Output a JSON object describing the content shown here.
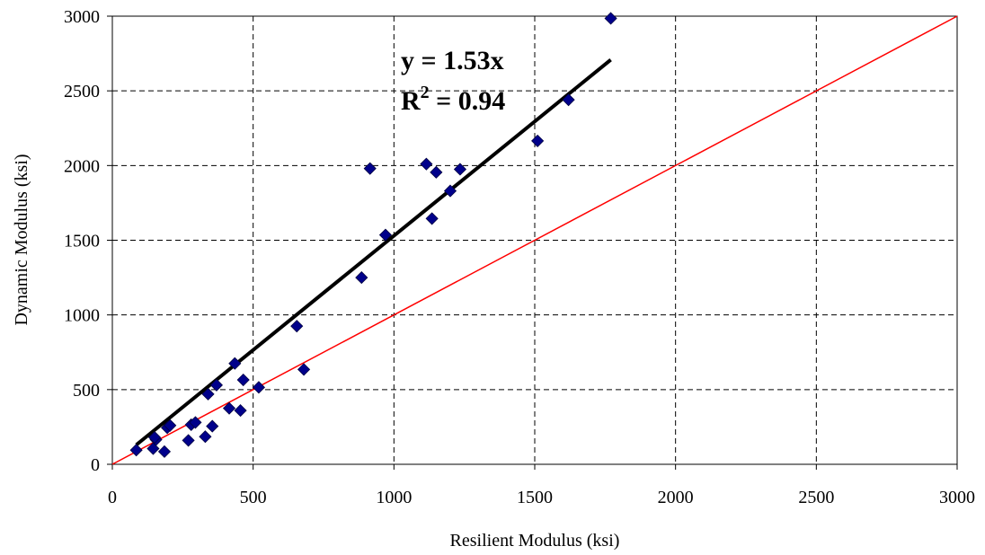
{
  "chart_data": {
    "type": "scatter",
    "xlabel": "Resilient Modulus (ksi)",
    "ylabel": "Dynamic Modulus (ksi)",
    "xlim": [
      0,
      3000
    ],
    "ylim": [
      0,
      3000
    ],
    "x_ticks": [
      "0",
      "500",
      "1000",
      "1500",
      "2000",
      "2500",
      "3000"
    ],
    "y_ticks": [
      "0",
      "500",
      "1000",
      "1500",
      "2000",
      "2500",
      "3000"
    ],
    "grid": true,
    "marker_color": "#00008B",
    "fit_line_color": "#000000",
    "equality_line_color": "#FF0000",
    "points": [
      [
        85,
        95
      ],
      [
        145,
        105
      ],
      [
        155,
        165
      ],
      [
        150,
        180
      ],
      [
        185,
        85
      ],
      [
        195,
        245
      ],
      [
        205,
        260
      ],
      [
        270,
        160
      ],
      [
        280,
        265
      ],
      [
        295,
        280
      ],
      [
        330,
        185
      ],
      [
        340,
        470
      ],
      [
        355,
        255
      ],
      [
        370,
        530
      ],
      [
        415,
        375
      ],
      [
        435,
        675
      ],
      [
        455,
        360
      ],
      [
        465,
        565
      ],
      [
        520,
        515
      ],
      [
        655,
        925
      ],
      [
        680,
        635
      ],
      [
        885,
        1250
      ],
      [
        915,
        1980
      ],
      [
        970,
        1535
      ],
      [
        1115,
        2010
      ],
      [
        1135,
        1645
      ],
      [
        1150,
        1955
      ],
      [
        1200,
        1830
      ],
      [
        1235,
        1975
      ],
      [
        1510,
        2165
      ],
      [
        1620,
        2440
      ],
      [
        1770,
        2985
      ]
    ],
    "fit_line": {
      "slope": 1.53,
      "x_range": [
        85,
        1770
      ]
    },
    "equality_line": {
      "x_range": [
        0,
        3000
      ]
    },
    "annotation": {
      "equation": "y = 1.53x",
      "r2_label": "R",
      "r2_sup": "2",
      "r2_value": " = 0.94"
    }
  }
}
